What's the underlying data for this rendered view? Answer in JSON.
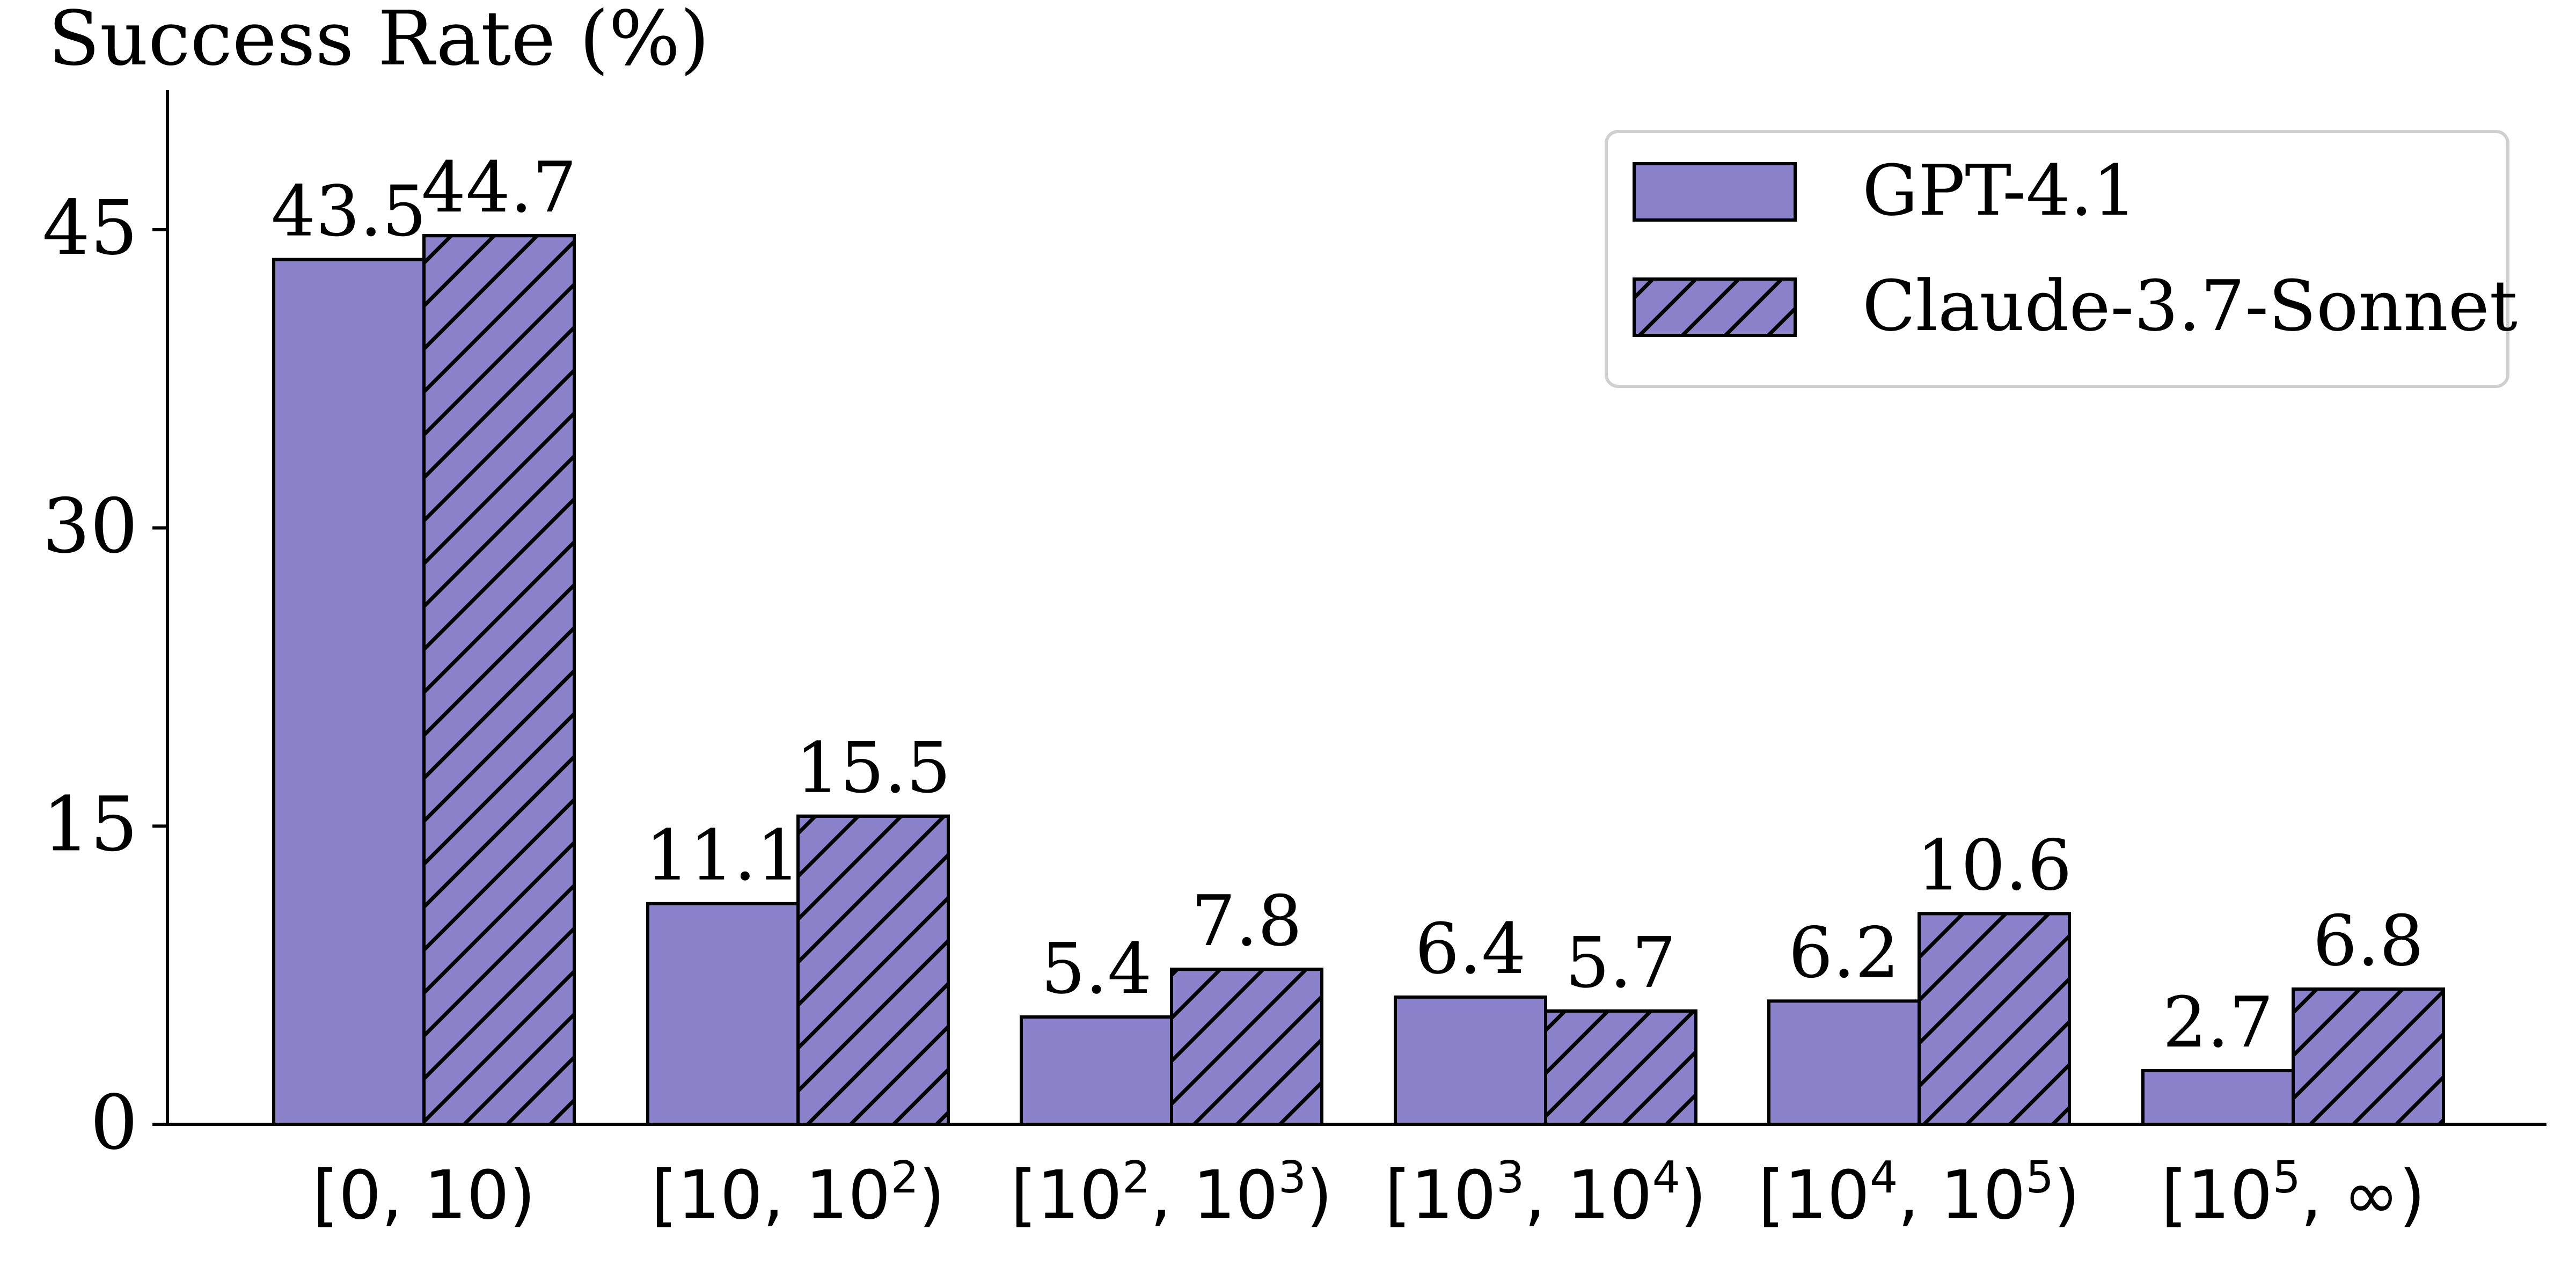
{
  "chart_data": {
    "type": "bar",
    "ylabel": "Success Rate (%)",
    "ylim": [
      0,
      52
    ],
    "yticks": [
      0,
      15,
      30,
      45
    ],
    "categories": [
      {
        "base": "[0, 10)",
        "sup1": "",
        "mid": "",
        "sup2": "",
        "end": ""
      },
      {
        "base": "[10, 10",
        "sup1": "2",
        "mid": ")",
        "sup2": "",
        "end": ""
      },
      {
        "base": "[10",
        "sup1": "2",
        "mid": ", 10",
        "sup2": "3",
        "end": ")"
      },
      {
        "base": "[10",
        "sup1": "3",
        "mid": ", 10",
        "sup2": "4",
        "end": ")"
      },
      {
        "base": "[10",
        "sup1": "4",
        "mid": ", 10",
        "sup2": "5",
        "end": ")"
      },
      {
        "base": "[10",
        "sup1": "5",
        "mid": ", ∞)",
        "sup2": "",
        "end": ""
      }
    ],
    "series": [
      {
        "name": "GPT-4.1",
        "values": [
          43.5,
          11.1,
          5.4,
          6.4,
          6.2,
          2.7
        ],
        "color": "#8b82cc",
        "hatch": false
      },
      {
        "name": "Claude-3.7-Sonnet",
        "values": [
          44.7,
          15.5,
          7.8,
          5.7,
          10.6,
          6.8
        ],
        "color": "#8b82cc",
        "hatch": true
      }
    ],
    "legend_position": "top-right",
    "grid": false
  }
}
